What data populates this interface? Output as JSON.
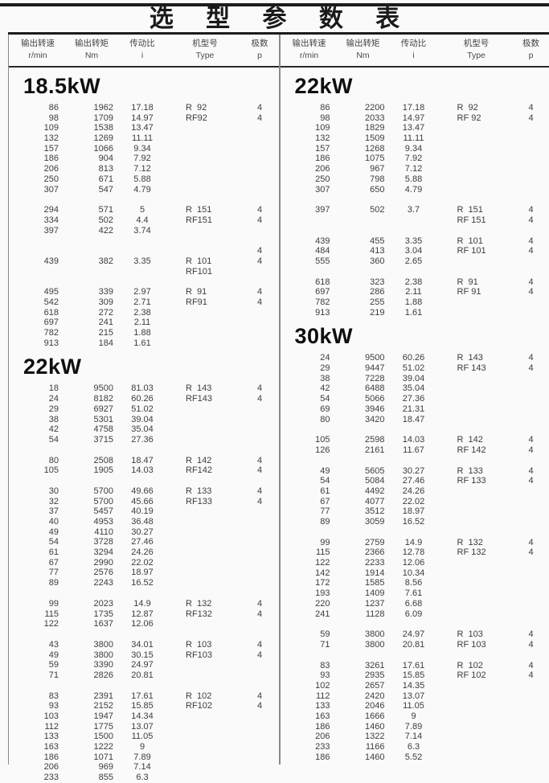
{
  "title": "选 型 参 数 表",
  "header": {
    "columns": [
      {
        "label": "输出转速",
        "unit": "r/min"
      },
      {
        "label": "输出转矩",
        "unit": "Nm"
      },
      {
        "label": "传动比",
        "unit": "i"
      },
      {
        "label": "机型号",
        "unit": "Type"
      },
      {
        "label": "极数",
        "unit": "p"
      }
    ]
  },
  "chart_data": {
    "type": "table",
    "title": "选型参数表",
    "columns": [
      "输出转速 r/min",
      "输出转矩 Nm",
      "传动比 i",
      "机型号 Type",
      "极数 p"
    ]
  },
  "table": {
    "left": {
      "sections": [
        {
          "heading": "18.5kW",
          "groups": [
            [
              [
                "86",
                "1962",
                "17.18",
                "R  92",
                "4"
              ],
              [
                "98",
                "1709",
                "14.97",
                "RF92",
                "4"
              ],
              [
                "109",
                "1538",
                "13.47",
                "",
                ""
              ],
              [
                "132",
                "1269",
                "11.11",
                "",
                ""
              ],
              [
                "157",
                "1066",
                "9.34",
                "",
                ""
              ],
              [
                "186",
                "904",
                "7.92",
                "",
                ""
              ],
              [
                "206",
                "813",
                "7.12",
                "",
                ""
              ],
              [
                "250",
                "671",
                "5.88",
                "",
                ""
              ],
              [
                "307",
                "547",
                "4.79",
                "",
                ""
              ]
            ],
            [
              [
                "294",
                "571",
                "5",
                "R  151",
                "4"
              ],
              [
                "334",
                "502",
                "4.4",
                "RF151",
                "4"
              ],
              [
                "397",
                "422",
                "3.74",
                "",
                ""
              ]
            ],
            [
              [
                "",
                "",
                "",
                "",
                "4"
              ],
              [
                "439",
                "382",
                "3.35",
                "R  101",
                "4"
              ],
              [
                "",
                "",
                "",
                "RF101",
                ""
              ]
            ],
            [
              [
                "495",
                "339",
                "2.97",
                "R  91",
                "4"
              ],
              [
                "542",
                "309",
                "2.71",
                "RF91",
                "4"
              ],
              [
                "618",
                "272",
                "2.38",
                "",
                ""
              ],
              [
                "697",
                "241",
                "2.11",
                "",
                ""
              ],
              [
                "782",
                "215",
                "1.88",
                "",
                ""
              ],
              [
                "913",
                "184",
                "1.61",
                "",
                ""
              ]
            ]
          ]
        },
        {
          "heading": "22kW",
          "groups": [
            [
              [
                "18",
                "9500",
                "81.03",
                "R  143",
                "4"
              ],
              [
                "24",
                "8182",
                "60.26",
                "RF143",
                "4"
              ],
              [
                "29",
                "6927",
                "51.02",
                "",
                ""
              ],
              [
                "38",
                "5301",
                "39.04",
                "",
                ""
              ],
              [
                "42",
                "4758",
                "35.04",
                "",
                ""
              ],
              [
                "54",
                "3715",
                "27.36",
                "",
                ""
              ]
            ],
            [
              [
                "80",
                "2508",
                "18.47",
                "R  142",
                "4"
              ],
              [
                "105",
                "1905",
                "14.03",
                "RF142",
                "4"
              ]
            ],
            [
              [
                "30",
                "5700",
                "49.66",
                "R  133",
                "4"
              ],
              [
                "32",
                "5700",
                "45.66",
                "RF133",
                "4"
              ],
              [
                "37",
                "5457",
                "40.19",
                "",
                ""
              ],
              [
                "40",
                "4953",
                "36.48",
                "",
                ""
              ],
              [
                "49",
                "4110",
                "30.27",
                "",
                ""
              ],
              [
                "54",
                "3728",
                "27.46",
                "",
                ""
              ],
              [
                "61",
                "3294",
                "24.26",
                "",
                ""
              ],
              [
                "67",
                "2990",
                "22.02",
                "",
                ""
              ],
              [
                "77",
                "2576",
                "18.97",
                "",
                ""
              ],
              [
                "89",
                "2243",
                "16.52",
                "",
                ""
              ]
            ],
            [
              [
                "99",
                "2023",
                "14.9",
                "R  132",
                "4"
              ],
              [
                "115",
                "1735",
                "12.87",
                "RF132",
                "4"
              ],
              [
                "122",
                "1637",
                "12.06",
                "",
                ""
              ]
            ],
            [
              [
                "43",
                "3800",
                "34.01",
                "R  103",
                "4"
              ],
              [
                "49",
                "3800",
                "30.15",
                "RF103",
                "4"
              ],
              [
                "59",
                "3390",
                "24.97",
                "",
                ""
              ],
              [
                "71",
                "2826",
                "20.81",
                "",
                ""
              ]
            ],
            [
              [
                "83",
                "2391",
                "17.61",
                "R  102",
                "4"
              ],
              [
                "93",
                "2152",
                "15.85",
                "RF102",
                "4"
              ],
              [
                "103",
                "1947",
                "14.34",
                "",
                ""
              ],
              [
                "112",
                "1775",
                "13.07",
                "",
                ""
              ],
              [
                "133",
                "1500",
                "11.05",
                "",
                ""
              ],
              [
                "163",
                "1222",
                "9",
                "",
                ""
              ],
              [
                "186",
                "1071",
                "7.89",
                "",
                ""
              ],
              [
                "206",
                "969",
                "7.14",
                "",
                ""
              ],
              [
                "233",
                "855",
                "6.3",
                "",
                ""
              ]
            ]
          ]
        }
      ]
    },
    "right": {
      "sections": [
        {
          "heading": "22kW",
          "groups": [
            [
              [
                "86",
                "2200",
                "17.18",
                "R  92",
                "4"
              ],
              [
                "98",
                "2033",
                "14.97",
                "RF 92",
                "4"
              ],
              [
                "109",
                "1829",
                "13.47",
                "",
                ""
              ],
              [
                "132",
                "1509",
                "11.11",
                "",
                ""
              ],
              [
                "157",
                "1268",
                "9.34",
                "",
                ""
              ],
              [
                "186",
                "1075",
                "7.92",
                "",
                ""
              ],
              [
                "206",
                "967",
                "7.12",
                "",
                ""
              ],
              [
                "250",
                "798",
                "5.88",
                "",
                ""
              ],
              [
                "307",
                "650",
                "4.79",
                "",
                ""
              ]
            ],
            [
              [
                "397",
                "502",
                "3.7",
                "R  151",
                "4"
              ],
              [
                "",
                "",
                "",
                "RF 151",
                "4"
              ]
            ],
            [
              [
                "439",
                "455",
                "3.35",
                "R  101",
                "4"
              ],
              [
                "484",
                "413",
                "3.04",
                "RF 101",
                "4"
              ],
              [
                "555",
                "360",
                "2.65",
                "",
                ""
              ]
            ],
            [
              [
                "618",
                "323",
                "2.38",
                "R  91",
                "4"
              ],
              [
                "697",
                "286",
                "2.11",
                "RF 91",
                "4"
              ],
              [
                "782",
                "255",
                "1.88",
                "",
                ""
              ],
              [
                "913",
                "219",
                "1.61",
                "",
                ""
              ]
            ]
          ]
        },
        {
          "heading": "30kW",
          "groups": [
            [
              [
                "24",
                "9500",
                "60.26",
                "R  143",
                "4"
              ],
              [
                "29",
                "9447",
                "51.02",
                "RF 143",
                "4"
              ],
              [
                "38",
                "7228",
                "39.04",
                "",
                ""
              ],
              [
                "42",
                "6488",
                "35.04",
                "",
                ""
              ],
              [
                "54",
                "5066",
                "27.36",
                "",
                ""
              ],
              [
                "69",
                "3946",
                "21.31",
                "",
                ""
              ],
              [
                "80",
                "3420",
                "18.47",
                "",
                ""
              ]
            ],
            [
              [
                "105",
                "2598",
                "14.03",
                "R  142",
                "4"
              ],
              [
                "126",
                "2161",
                "11.67",
                "RF 142",
                "4"
              ]
            ],
            [
              [
                "49",
                "5605",
                "30.27",
                "R  133",
                "4"
              ],
              [
                "54",
                "5084",
                "27.46",
                "RF 133",
                "4"
              ],
              [
                "61",
                "4492",
                "24.26",
                "",
                ""
              ],
              [
                "67",
                "4077",
                "22.02",
                "",
                ""
              ],
              [
                "77",
                "3512",
                "18.97",
                "",
                ""
              ],
              [
                "89",
                "3059",
                "16.52",
                "",
                ""
              ]
            ],
            [
              [
                "99",
                "2759",
                "14.9",
                "R  132",
                "4"
              ],
              [
                "115",
                "2366",
                "12.78",
                "RF 132",
                "4"
              ],
              [
                "122",
                "2233",
                "12.06",
                "",
                ""
              ],
              [
                "142",
                "1914",
                "10.34",
                "",
                ""
              ],
              [
                "172",
                "1585",
                "8.56",
                "",
                ""
              ],
              [
                "193",
                "1409",
                "7.61",
                "",
                ""
              ],
              [
                "220",
                "1237",
                "6.68",
                "",
                ""
              ],
              [
                "241",
                "1128",
                "6.09",
                "",
                ""
              ]
            ],
            [
              [
                "59",
                "3800",
                "24.97",
                "R  103",
                "4"
              ],
              [
                "71",
                "3800",
                "20.81",
                "RF 103",
                "4"
              ]
            ],
            [
              [
                "83",
                "3261",
                "17.61",
                "R  102",
                "4"
              ],
              [
                "93",
                "2935",
                "15.85",
                "RF 102",
                "4"
              ],
              [
                "102",
                "2657",
                "14.35",
                "",
                ""
              ],
              [
                "112",
                "2420",
                "13.07",
                "",
                ""
              ],
              [
                "133",
                "2046",
                "11.05",
                "",
                ""
              ],
              [
                "163",
                "1666",
                "9",
                "",
                ""
              ],
              [
                "186",
                "1460",
                "7.89",
                "",
                ""
              ],
              [
                "206",
                "1322",
                "7.14",
                "",
                ""
              ],
              [
                "233",
                "1166",
                "6.3",
                "",
                ""
              ],
              [
                "186",
                "1460",
                "5.52",
                "",
                ""
              ]
            ]
          ]
        }
      ]
    }
  }
}
